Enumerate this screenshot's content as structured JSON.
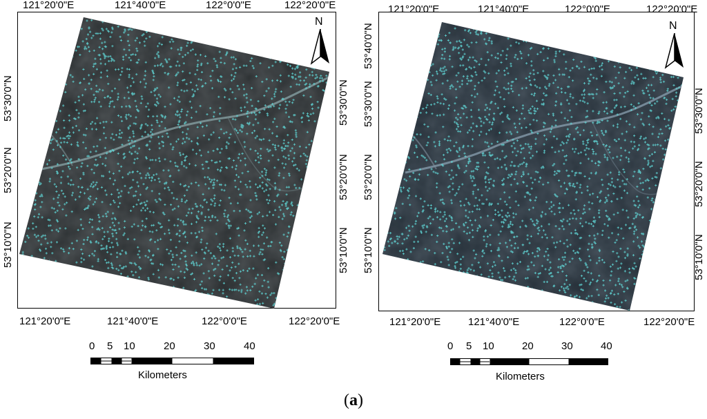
{
  "maps": [
    {
      "name": "left",
      "lon_labels": [
        "121°20'0\"E",
        "121°40'0\"E",
        "122°0'0\"E",
        "122°20'0\"E"
      ],
      "lat_labels_left": [
        "53°30'0\"N",
        "53°20'0\"N",
        "53°10'0\"N"
      ],
      "lat_labels_right": [
        "53°30'0\"N",
        "53°20'0\"N",
        "53°10'0\"N"
      ],
      "north_label": "N"
    },
    {
      "name": "right",
      "lon_labels": [
        "121°20'0\"E",
        "121°40'0\"E",
        "122°0'0\"E",
        "122°20'0\"E"
      ],
      "lat_labels_left": [
        "53°40'0\"N",
        "53°30'0\"N",
        "53°20'0\"N",
        "53°10'0\"N"
      ],
      "lat_labels_right": [
        "53°30'0\"N",
        "53°20'0\"N",
        "53°10'0\"N"
      ],
      "north_label": "N"
    }
  ],
  "scale": {
    "labels": [
      "0",
      "5",
      "10",
      "20",
      "30",
      "40"
    ],
    "unit": "Kilometers"
  },
  "caption": {
    "open": "(",
    "letter": "a",
    "close": ")"
  },
  "colors": {
    "point": "#5fd3d3",
    "imagery_left": "#2b2f31",
    "imagery_right": "#263039"
  },
  "icons": [
    "north-arrow-icon"
  ]
}
